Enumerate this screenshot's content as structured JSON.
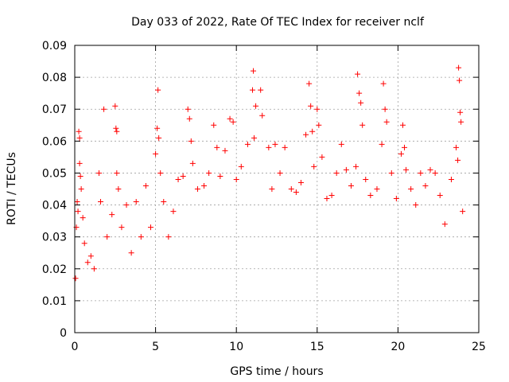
{
  "chart_data": {
    "type": "scatter",
    "title": "Day 033 of 2022, Rate Of TEC Index for receiver nclf",
    "xlabel": "GPS time / hours",
    "ylabel": "ROTI / TECUs",
    "xlim": [
      0,
      25
    ],
    "ylim": [
      0,
      0.09
    ],
    "xticks": [
      "0",
      "5",
      "10",
      "15",
      "20",
      "25"
    ],
    "yticks": [
      "0",
      "0.01",
      "0.02",
      "0.03",
      "0.04",
      "0.05",
      "0.06",
      "0.07",
      "0.08",
      "0.09"
    ],
    "grid": true,
    "marker": "plus",
    "color": "#ff0000",
    "series": [
      {
        "points": [
          [
            0.05,
            0.017
          ],
          [
            0.1,
            0.033
          ],
          [
            0.15,
            0.041
          ],
          [
            0.2,
            0.038
          ],
          [
            0.25,
            0.063
          ],
          [
            0.3,
            0.061
          ],
          [
            0.3,
            0.053
          ],
          [
            0.35,
            0.049
          ],
          [
            0.4,
            0.045
          ],
          [
            0.5,
            0.036
          ],
          [
            0.6,
            0.028
          ],
          [
            0.8,
            0.022
          ],
          [
            1.0,
            0.024
          ],
          [
            1.2,
            0.02
          ],
          [
            1.5,
            0.05
          ],
          [
            1.6,
            0.041
          ],
          [
            1.8,
            0.07
          ],
          [
            2.0,
            0.03
          ],
          [
            2.3,
            0.037
          ],
          [
            2.5,
            0.071
          ],
          [
            2.55,
            0.064
          ],
          [
            2.6,
            0.063
          ],
          [
            2.6,
            0.05
          ],
          [
            2.7,
            0.045
          ],
          [
            2.9,
            0.033
          ],
          [
            3.2,
            0.04
          ],
          [
            3.5,
            0.025
          ],
          [
            3.8,
            0.041
          ],
          [
            4.1,
            0.03
          ],
          [
            4.4,
            0.046
          ],
          [
            4.7,
            0.033
          ],
          [
            5.0,
            0.056
          ],
          [
            5.1,
            0.064
          ],
          [
            5.15,
            0.076
          ],
          [
            5.2,
            0.061
          ],
          [
            5.3,
            0.05
          ],
          [
            5.5,
            0.041
          ],
          [
            5.8,
            0.03
          ],
          [
            6.1,
            0.038
          ],
          [
            6.4,
            0.048
          ],
          [
            6.7,
            0.049
          ],
          [
            7.0,
            0.07
          ],
          [
            7.1,
            0.067
          ],
          [
            7.2,
            0.06
          ],
          [
            7.3,
            0.053
          ],
          [
            7.6,
            0.045
          ],
          [
            8.0,
            0.046
          ],
          [
            8.3,
            0.05
          ],
          [
            8.6,
            0.065
          ],
          [
            8.8,
            0.058
          ],
          [
            9.0,
            0.049
          ],
          [
            9.3,
            0.057
          ],
          [
            9.6,
            0.067
          ],
          [
            9.8,
            0.066
          ],
          [
            10.0,
            0.048
          ],
          [
            10.3,
            0.052
          ],
          [
            10.7,
            0.059
          ],
          [
            11.0,
            0.076
          ],
          [
            11.05,
            0.082
          ],
          [
            11.1,
            0.061
          ],
          [
            11.2,
            0.071
          ],
          [
            11.5,
            0.076
          ],
          [
            11.6,
            0.068
          ],
          [
            12.0,
            0.058
          ],
          [
            12.2,
            0.045
          ],
          [
            12.4,
            0.059
          ],
          [
            12.7,
            0.05
          ],
          [
            13.0,
            0.058
          ],
          [
            13.4,
            0.045
          ],
          [
            13.7,
            0.044
          ],
          [
            14.0,
            0.047
          ],
          [
            14.3,
            0.062
          ],
          [
            14.5,
            0.078
          ],
          [
            14.6,
            0.071
          ],
          [
            14.7,
            0.063
          ],
          [
            14.8,
            0.052
          ],
          [
            15.0,
            0.07
          ],
          [
            15.1,
            0.065
          ],
          [
            15.3,
            0.055
          ],
          [
            15.6,
            0.042
          ],
          [
            15.9,
            0.043
          ],
          [
            16.2,
            0.05
          ],
          [
            16.5,
            0.059
          ],
          [
            16.8,
            0.051
          ],
          [
            17.1,
            0.046
          ],
          [
            17.4,
            0.052
          ],
          [
            17.5,
            0.081
          ],
          [
            17.6,
            0.075
          ],
          [
            17.7,
            0.072
          ],
          [
            17.8,
            0.065
          ],
          [
            18.0,
            0.048
          ],
          [
            18.3,
            0.043
          ],
          [
            18.7,
            0.045
          ],
          [
            19.0,
            0.059
          ],
          [
            19.1,
            0.078
          ],
          [
            19.2,
            0.07
          ],
          [
            19.3,
            0.066
          ],
          [
            19.6,
            0.05
          ],
          [
            19.9,
            0.042
          ],
          [
            20.2,
            0.056
          ],
          [
            20.3,
            0.065
          ],
          [
            20.4,
            0.058
          ],
          [
            20.5,
            0.051
          ],
          [
            20.8,
            0.045
          ],
          [
            21.1,
            0.04
          ],
          [
            21.4,
            0.05
          ],
          [
            21.7,
            0.046
          ],
          [
            22.0,
            0.051
          ],
          [
            22.3,
            0.05
          ],
          [
            22.6,
            0.043
          ],
          [
            22.9,
            0.034
          ],
          [
            23.3,
            0.048
          ],
          [
            23.6,
            0.058
          ],
          [
            23.7,
            0.054
          ],
          [
            23.75,
            0.083
          ],
          [
            23.8,
            0.079
          ],
          [
            23.85,
            0.069
          ],
          [
            23.9,
            0.066
          ],
          [
            24.0,
            0.038
          ]
        ]
      }
    ]
  }
}
